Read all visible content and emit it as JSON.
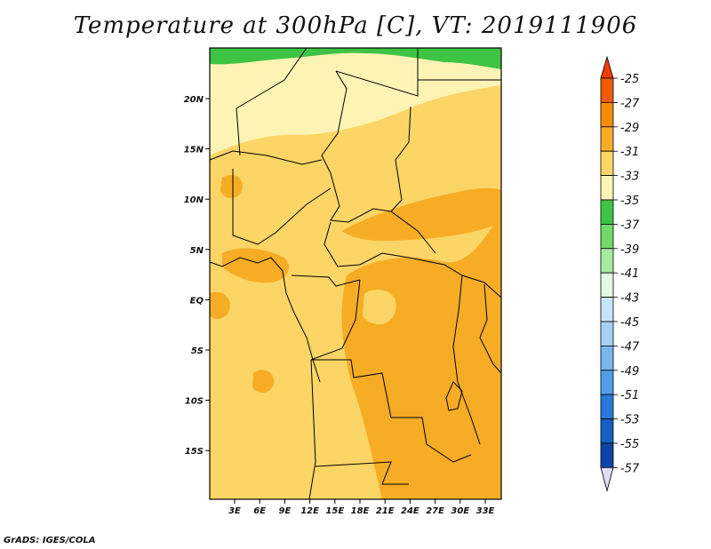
{
  "title": "Temperature at 300hPa [C], VT: 2019111906",
  "footer": "GrADS: IGES/COLA",
  "map": {
    "lon_ticks": [
      "3E",
      "6E",
      "9E",
      "12E",
      "15E",
      "18E",
      "21E",
      "24E",
      "27E",
      "30E",
      "33E"
    ],
    "lat_ticks": [
      "20N",
      "15N",
      "10N",
      "5N",
      "EQ",
      "5S",
      "10S",
      "15S"
    ]
  },
  "colorbar": {
    "levels": [
      "-25",
      "-27",
      "-29",
      "-31",
      "-33",
      "-35",
      "-37",
      "-39",
      "-41",
      "-43",
      "-45",
      "-47",
      "-49",
      "-51",
      "-53",
      "-55",
      "-57"
    ],
    "colors": [
      "#f05a00",
      "#f58c00",
      "#f6ad25",
      "#fbd565",
      "#fdf3b4",
      "#3ec443",
      "#71d86a",
      "#a8e9a0",
      "#e1fce1",
      "#c8e4fb",
      "#a6d0f5",
      "#78b7ef",
      "#4e9de8",
      "#2a79db",
      "#155fc2",
      "#0d45a6",
      "#08186e"
    ],
    "top_arrow_color": "#f03c00",
    "bottom_arrow_color": "#dcdcf5"
  }
}
